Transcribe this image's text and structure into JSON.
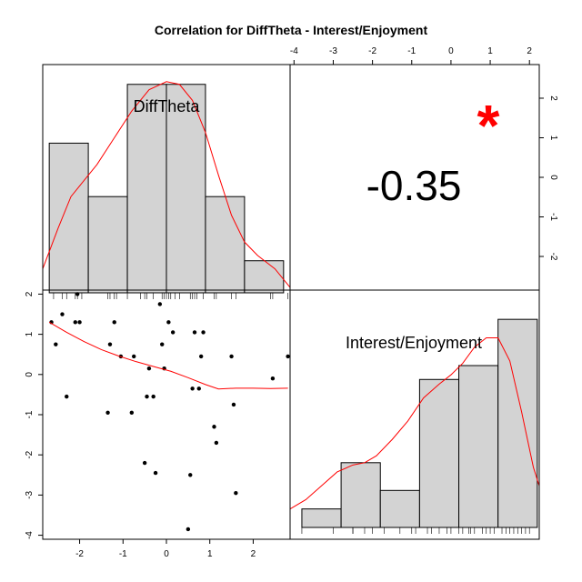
{
  "chart_data": {
    "type": "scatter",
    "title": "Correlation  for DiffTheta - Interest/Enjoyment",
    "colors": {
      "bar_fill": "#d3d3d3",
      "density": "#ff0000",
      "significance": "#ff0000",
      "points": "#000000",
      "frame": "#000000"
    },
    "variables": [
      "DiffTheta",
      "Interest/Enjoyment"
    ],
    "correlation": {
      "value_text": "-0.35",
      "significance_marker": "*"
    },
    "x_axis": {
      "range": [
        -2.85,
        2.85
      ],
      "ticks": [
        -2,
        -1,
        0,
        1,
        2
      ],
      "tick_labels": [
        "-2",
        "-1",
        "0",
        "1",
        "2"
      ]
    },
    "y_axis": {
      "range": [
        -4.1,
        2.1
      ],
      "ticks": [
        -4,
        -3,
        -2,
        -1,
        0,
        1,
        2
      ],
      "tick_labels": [
        "-4",
        "-3",
        "-2",
        "-1",
        "0",
        "1",
        "2"
      ]
    },
    "top_axis": {
      "range": [
        -4.1,
        2.25
      ],
      "ticks": [
        -4,
        -3,
        -2,
        -1,
        0,
        1,
        2
      ],
      "tick_labels": [
        "-4",
        "-3",
        "-2",
        "-1",
        "0",
        "1",
        "2"
      ]
    },
    "right_axis": {
      "range": [
        -2.85,
        2.85
      ],
      "ticks": [
        -2,
        -1,
        0,
        1,
        2
      ],
      "tick_labels": [
        "-2",
        "-1",
        "0",
        "1",
        "2"
      ]
    },
    "hist_diff_theta": {
      "breaks": [
        -2.7,
        -1.8,
        -0.9,
        0.0,
        0.9,
        1.8,
        2.7
      ],
      "densities": [
        0.28,
        0.18,
        0.39,
        0.39,
        0.18,
        0.06
      ],
      "ymax": 0.41,
      "density_x": [
        -2.85,
        -2.5,
        -2.2,
        -1.9,
        -1.6,
        -1.2,
        -0.8,
        -0.4,
        0.0,
        0.3,
        0.6,
        0.9,
        1.2,
        1.5,
        1.8,
        2.1,
        2.5,
        2.85
      ],
      "density_y": [
        0.045,
        0.12,
        0.18,
        0.21,
        0.24,
        0.29,
        0.34,
        0.38,
        0.395,
        0.39,
        0.36,
        0.3,
        0.22,
        0.145,
        0.095,
        0.07,
        0.045,
        0.01
      ],
      "rug": [
        -2.6,
        -2.4,
        -2.3,
        -2.1,
        -2.05,
        -1.95,
        -1.35,
        -1.3,
        -1.2,
        -1.15,
        -0.9,
        -0.6,
        -0.5,
        -0.45,
        -0.3,
        -0.1,
        -0.05,
        0.0,
        0.05,
        0.1,
        0.2,
        0.3,
        0.55,
        0.6,
        0.65,
        0.7,
        0.85,
        1.1,
        1.15,
        1.5,
        1.6,
        2.4,
        2.45,
        2.8
      ]
    },
    "hist_interest": {
      "breaks": [
        -3.8,
        -2.8,
        -1.8,
        -0.8,
        0.2,
        1.2,
        2.2
      ],
      "densities": [
        0.04,
        0.14,
        0.08,
        0.32,
        0.35,
        0.45
      ],
      "ymax": 0.47,
      "density_x": [
        -4.1,
        -3.7,
        -3.3,
        -2.9,
        -2.5,
        -2.2,
        -1.9,
        -1.5,
        -1.1,
        -0.7,
        -0.3,
        0.0,
        0.3,
        0.6,
        0.9,
        1.2,
        1.5,
        1.8,
        2.1,
        2.25
      ],
      "density_y": [
        0.04,
        0.06,
        0.09,
        0.12,
        0.135,
        0.14,
        0.155,
        0.19,
        0.23,
        0.28,
        0.31,
        0.33,
        0.355,
        0.39,
        0.41,
        0.41,
        0.36,
        0.25,
        0.13,
        0.09
      ],
      "rug": [
        -3.8,
        -3.0,
        -2.5,
        -2.5,
        -2.2,
        -2.0,
        -1.7,
        -1.3,
        -1.0,
        -0.9,
        -0.6,
        -0.5,
        -0.3,
        -0.1,
        0.0,
        0.2,
        0.3,
        0.45,
        0.5,
        0.6,
        0.8,
        0.9,
        1.0,
        1.1,
        1.3,
        1.4,
        1.5,
        1.6,
        1.7,
        1.8,
        1.9,
        2.0
      ]
    },
    "scatter": {
      "x": [
        -2.65,
        -2.55,
        -2.4,
        -2.3,
        -2.1,
        -2.05,
        -2.0,
        -1.35,
        -1.3,
        -1.2,
        -1.05,
        -0.8,
        -0.75,
        -0.5,
        -0.45,
        -0.4,
        -0.3,
        -0.25,
        -0.15,
        -0.1,
        -0.05,
        0.05,
        0.15,
        0.5,
        0.55,
        0.6,
        0.65,
        0.75,
        0.8,
        0.85,
        1.1,
        1.15,
        1.5,
        1.55,
        1.6,
        2.45,
        2.8
      ],
      "y": [
        1.3,
        0.75,
        1.5,
        -0.55,
        1.3,
        2.0,
        1.3,
        -0.95,
        0.75,
        1.3,
        0.45,
        -0.95,
        0.45,
        -2.2,
        -0.55,
        0.15,
        -0.55,
        -2.45,
        1.75,
        0.75,
        0.15,
        1.3,
        1.05,
        -3.85,
        -2.5,
        -0.35,
        1.05,
        -0.35,
        0.45,
        1.05,
        -1.3,
        -1.7,
        0.45,
        -0.75,
        -2.95,
        -0.1,
        0.45
      ],
      "smooth_x": [
        -2.7,
        -2.3,
        -1.9,
        -1.5,
        -1.1,
        -0.7,
        -0.3,
        0.1,
        0.5,
        0.9,
        1.2,
        1.6,
        2.0,
        2.4,
        2.8
      ],
      "smooth_y": [
        1.3,
        1.05,
        0.82,
        0.62,
        0.46,
        0.32,
        0.2,
        0.08,
        -0.08,
        -0.25,
        -0.36,
        -0.34,
        -0.34,
        -0.35,
        -0.34
      ]
    }
  }
}
